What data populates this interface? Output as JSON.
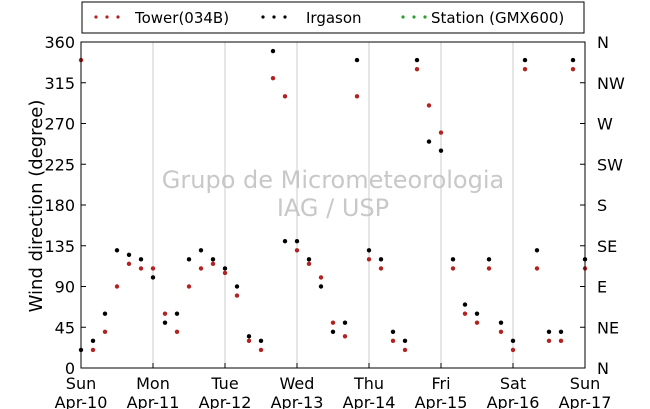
{
  "chart_data": {
    "type": "scatter",
    "title": "",
    "xlabel": "",
    "ylabel": "Wind direction (degree)",
    "ylim": [
      0,
      360
    ],
    "yticks": [
      0,
      45,
      90,
      135,
      180,
      225,
      270,
      315,
      360
    ],
    "y2_tick_labels": [
      "N",
      "NE",
      "E",
      "SE",
      "S",
      "SW",
      "W",
      "NW",
      "N"
    ],
    "xlim": [
      "2016-04-10",
      "2016-04-17"
    ],
    "x_ticks": [
      {
        "day": "Sun",
        "date": "Apr-10"
      },
      {
        "day": "Mon",
        "date": "Apr-11"
      },
      {
        "day": "Tue",
        "date": "Apr-12"
      },
      {
        "day": "Wed",
        "date": "Apr-13"
      },
      {
        "day": "Thu",
        "date": "Apr-14"
      },
      {
        "day": "Fri",
        "date": "Apr-15"
      },
      {
        "day": "Sat",
        "date": "Apr-16"
      },
      {
        "day": "Sun",
        "date": "Apr-17"
      }
    ],
    "grid": "vertical",
    "legend_position": "top",
    "watermark": [
      "Grupo de Micrometeorologia",
      "IAG / USP"
    ],
    "series": [
      {
        "name": "Tower(034B)",
        "color": "#b22222",
        "x": [
          "2016-04-10 00:00",
          "2016-04-10 04:00",
          "2016-04-10 08:00",
          "2016-04-10 12:00",
          "2016-04-10 16:00",
          "2016-04-10 20:00",
          "2016-04-11 00:00",
          "2016-04-11 04:00",
          "2016-04-11 08:00",
          "2016-04-11 12:00",
          "2016-04-11 16:00",
          "2016-04-11 20:00",
          "2016-04-12 00:00",
          "2016-04-12 04:00",
          "2016-04-12 08:00",
          "2016-04-12 12:00",
          "2016-04-12 16:00",
          "2016-04-12 20:00",
          "2016-04-13 00:00",
          "2016-04-13 04:00",
          "2016-04-13 08:00",
          "2016-04-13 12:00",
          "2016-04-13 16:00",
          "2016-04-13 20:00",
          "2016-04-14 00:00",
          "2016-04-14 04:00",
          "2016-04-14 08:00",
          "2016-04-14 12:00",
          "2016-04-14 16:00",
          "2016-04-14 20:00",
          "2016-04-15 00:00",
          "2016-04-15 04:00",
          "2016-04-15 08:00",
          "2016-04-15 12:00",
          "2016-04-15 16:00",
          "2016-04-15 20:00",
          "2016-04-16 00:00",
          "2016-04-16 04:00",
          "2016-04-16 08:00",
          "2016-04-16 12:00",
          "2016-04-16 16:00",
          "2016-04-16 20:00",
          "2016-04-17 00:00"
        ],
        "y": [
          340,
          20,
          40,
          90,
          115,
          110,
          110,
          60,
          40,
          90,
          110,
          115,
          105,
          80,
          30,
          20,
          320,
          300,
          130,
          115,
          100,
          50,
          35,
          300,
          120,
          110,
          30,
          20,
          330,
          290,
          260,
          110,
          60,
          50,
          110,
          40,
          20,
          330,
          110,
          30,
          30,
          330,
          110
        ]
      },
      {
        "name": "Irgason",
        "color": "#000000",
        "x": [
          "2016-04-10 00:00",
          "2016-04-10 04:00",
          "2016-04-10 08:00",
          "2016-04-10 12:00",
          "2016-04-10 16:00",
          "2016-04-10 20:00",
          "2016-04-11 00:00",
          "2016-04-11 04:00",
          "2016-04-11 08:00",
          "2016-04-11 12:00",
          "2016-04-11 16:00",
          "2016-04-11 20:00",
          "2016-04-12 00:00",
          "2016-04-12 04:00",
          "2016-04-12 08:00",
          "2016-04-12 12:00",
          "2016-04-12 16:00",
          "2016-04-12 20:00",
          "2016-04-13 00:00",
          "2016-04-13 04:00",
          "2016-04-13 08:00",
          "2016-04-13 12:00",
          "2016-04-13 16:00",
          "2016-04-13 20:00",
          "2016-04-14 00:00",
          "2016-04-14 04:00",
          "2016-04-14 08:00",
          "2016-04-14 12:00",
          "2016-04-14 16:00",
          "2016-04-14 20:00",
          "2016-04-15 00:00",
          "2016-04-15 04:00",
          "2016-04-15 08:00",
          "2016-04-15 12:00",
          "2016-04-15 16:00",
          "2016-04-15 20:00",
          "2016-04-16 00:00",
          "2016-04-16 04:00",
          "2016-04-16 08:00",
          "2016-04-16 12:00",
          "2016-04-16 16:00",
          "2016-04-16 20:00",
          "2016-04-17 00:00"
        ],
        "y": [
          20,
          30,
          60,
          130,
          125,
          120,
          100,
          50,
          60,
          120,
          130,
          120,
          110,
          90,
          35,
          30,
          350,
          140,
          140,
          120,
          90,
          40,
          50,
          340,
          130,
          120,
          40,
          30,
          340,
          250,
          240,
          120,
          70,
          60,
          120,
          50,
          30,
          340,
          130,
          40,
          40,
          340,
          120
        ]
      },
      {
        "name": "Station (GMX600)",
        "color": "#2ca02c",
        "x": [],
        "y": []
      }
    ]
  }
}
